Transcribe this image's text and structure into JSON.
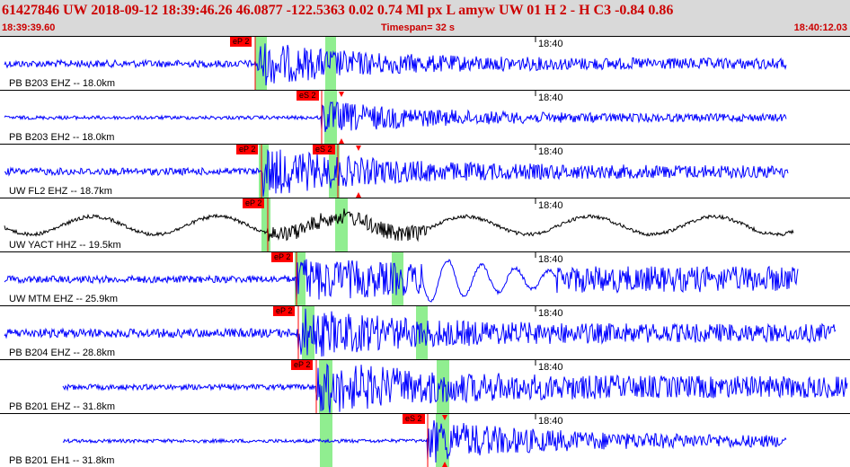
{
  "header": {
    "summary": "61427846 UW 2018-09-12 18:39:46.26   46.0877 -122.5363   0.02  0.74 Ml  px  L amyw     UW 01  H   2  -  H C3   -0.84  0.86",
    "start_time": "18:39:39.60",
    "timespan": "Timespan=  32 s",
    "end_time": "18:40:12.03"
  },
  "colors": {
    "header_bg": "#d9d9d9",
    "header_text": "#cc0000",
    "trace": "#0000ff",
    "trace_alt": "#000000",
    "window": "#90ee90",
    "pick": "#ff0000"
  },
  "time_tick_label": "18:40",
  "channels": [
    {
      "label": "PB B203 EHZ -- 18.0km",
      "color": "#0000ff",
      "picks": [
        {
          "tag": "eP 2"
        }
      ]
    },
    {
      "label": "PB B203 EH2 -- 18.0km",
      "color": "#0000ff",
      "picks": [
        {
          "tag": "eS 2"
        }
      ]
    },
    {
      "label": "UW FL2 EHZ -- 18.7km",
      "color": "#0000ff",
      "picks": [
        {
          "tag": "eP 2"
        },
        {
          "tag": "eS 2"
        }
      ]
    },
    {
      "label": "UW YACT HHZ -- 19.5km",
      "color": "#000000",
      "picks": [
        {
          "tag": "eP 2"
        }
      ]
    },
    {
      "label": "UW MTM EHZ -- 25.9km",
      "color": "#0000ff",
      "picks": [
        {
          "tag": "eP 2"
        }
      ]
    },
    {
      "label": "PB B204 EHZ -- 28.8km",
      "color": "#0000ff",
      "picks": [
        {
          "tag": "eP 2"
        }
      ]
    },
    {
      "label": "PB B201 EHZ -- 31.8km",
      "color": "#0000ff",
      "picks": [
        {
          "tag": "eP 2"
        }
      ]
    },
    {
      "label": "PB B201 EH1 -- 31.8km",
      "color": "#0000ff",
      "picks": [
        {
          "tag": "eS 2"
        }
      ]
    }
  ]
}
